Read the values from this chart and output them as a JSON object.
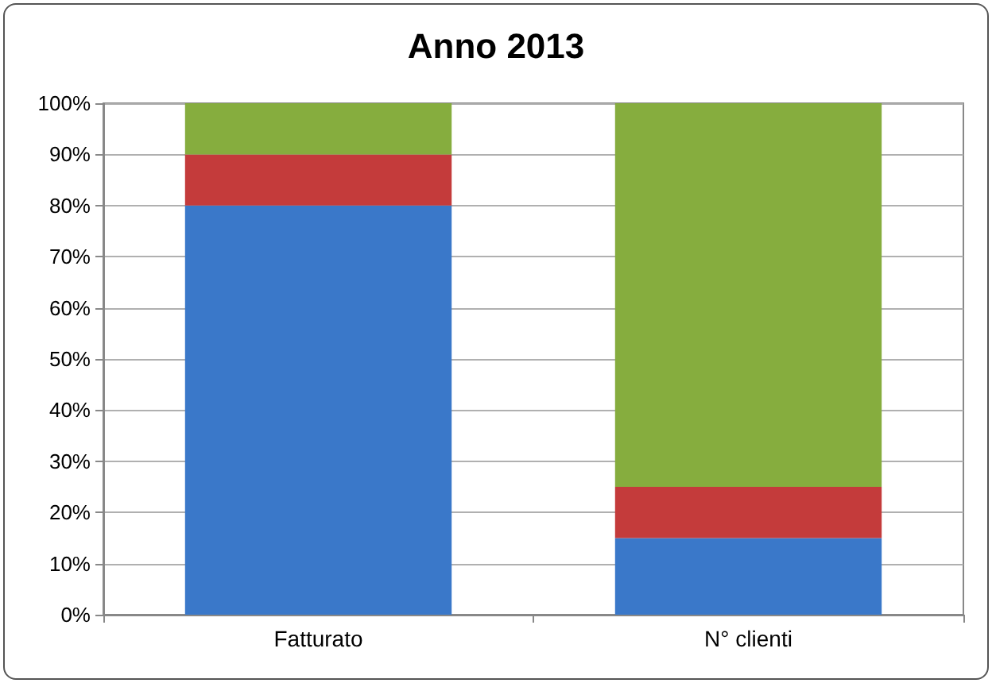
{
  "chart_data": {
    "type": "bar",
    "title": "Anno 2013",
    "categories": [
      "Fatturato",
      "N° clienti"
    ],
    "stacked": true,
    "series": [
      {
        "color": "#3a78c9",
        "values": [
          80,
          15
        ]
      },
      {
        "color": "#c43b3b",
        "values": [
          10,
          10
        ]
      },
      {
        "color": "#86ad3e",
        "values": [
          10,
          75
        ]
      }
    ],
    "ylim": [
      0,
      100
    ],
    "yticks": [
      {
        "value": 0,
        "label": "0%"
      },
      {
        "value": 10,
        "label": "10%"
      },
      {
        "value": 20,
        "label": "20%"
      },
      {
        "value": 30,
        "label": "30%"
      },
      {
        "value": 40,
        "label": "40%"
      },
      {
        "value": 50,
        "label": "50%"
      },
      {
        "value": 60,
        "label": "60%"
      },
      {
        "value": 70,
        "label": "70%"
      },
      {
        "value": 80,
        "label": "80%"
      },
      {
        "value": 90,
        "label": "90%"
      },
      {
        "value": 100,
        "label": "100%"
      }
    ],
    "grid": true
  }
}
